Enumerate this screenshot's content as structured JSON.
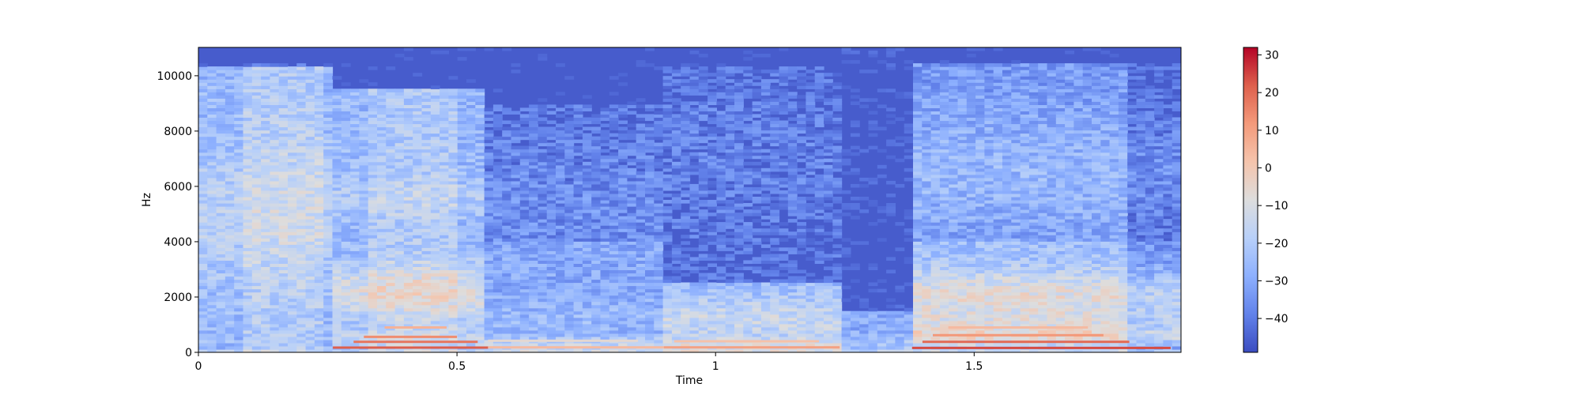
{
  "chart_data": {
    "type": "heatmap",
    "title": "",
    "xlabel": "Time",
    "ylabel": "Hz",
    "xlim": [
      0,
      1.9
    ],
    "ylim": [
      0,
      11025
    ],
    "x_ticks": [
      {
        "value": 0,
        "label": "0"
      },
      {
        "value": 0.5,
        "label": "0.5"
      },
      {
        "value": 1,
        "label": "1"
      },
      {
        "value": 1.5,
        "label": "1.5"
      }
    ],
    "y_ticks": [
      {
        "value": 0,
        "label": "0"
      },
      {
        "value": 2000,
        "label": "2000"
      },
      {
        "value": 4000,
        "label": "4000"
      },
      {
        "value": 6000,
        "label": "6000"
      },
      {
        "value": 8000,
        "label": "8000"
      },
      {
        "value": 10000,
        "label": "10000"
      }
    ],
    "colorbar": {
      "colormap": "coolwarm",
      "range": [
        -49,
        32
      ],
      "ticks": [
        {
          "value": 30,
          "label": "30"
        },
        {
          "value": 20,
          "label": "20"
        },
        {
          "value": 10,
          "label": "10"
        },
        {
          "value": 0,
          "label": "0"
        },
        {
          "value": -10,
          "label": "−10"
        },
        {
          "value": -20,
          "label": "−20"
        },
        {
          "value": -30,
          "label": "−30"
        },
        {
          "value": -40,
          "label": "−40"
        }
      ],
      "colors": [
        "#3b4cc0",
        "#6282ea",
        "#8db0fe",
        "#b8d0f9",
        "#dddddd",
        "#f5c4ac",
        "#f49a7b",
        "#de604d",
        "#b40426"
      ]
    },
    "segments": [
      {
        "start": 0.0,
        "end": 0.26,
        "level": -18,
        "description": "broadband"
      },
      {
        "start": 0.26,
        "end": 0.56,
        "level": -15,
        "description": "harmonic"
      },
      {
        "start": 0.56,
        "end": 0.9,
        "level": -28,
        "description": "harmonic"
      },
      {
        "start": 0.9,
        "end": 1.24,
        "level": -26,
        "description": "harmonic"
      },
      {
        "start": 1.24,
        "end": 1.38,
        "level": -36,
        "description": "quiet"
      },
      {
        "start": 1.38,
        "end": 1.9,
        "level": -18,
        "description": "harmonic"
      }
    ]
  }
}
